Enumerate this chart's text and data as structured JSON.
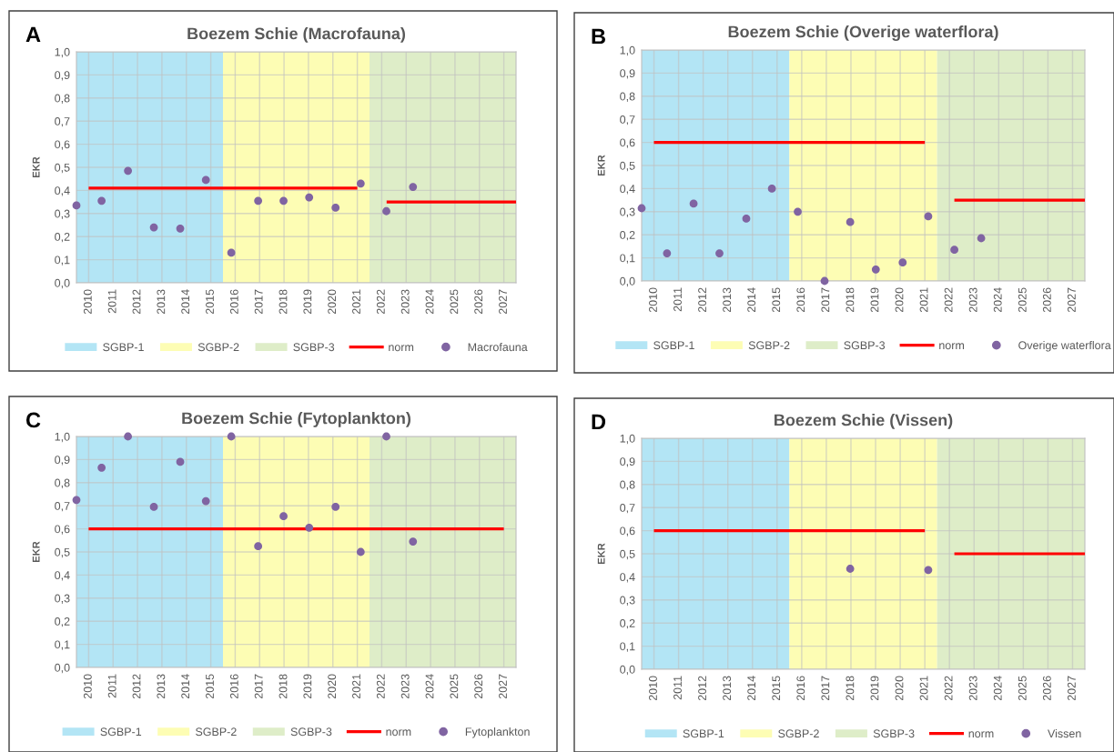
{
  "chart_data": [
    {
      "type": "scatter",
      "title": "Boezem Schie (Macrofauna)",
      "ylabel": "EKR",
      "annotations": [
        "A"
      ],
      "xlim": [
        2009.5,
        2027.5
      ],
      "xticks": [
        2010,
        2011,
        2012,
        2013,
        2014,
        2015,
        2016,
        2017,
        2018,
        2019,
        2020,
        2021,
        2022,
        2023,
        2024,
        2025,
        2026,
        2027
      ],
      "ylim": [
        0,
        1
      ],
      "yticks": [
        {
          "value": 0,
          "label": "0,0"
        },
        {
          "value": 0.1,
          "label": "0,1"
        },
        {
          "value": 0.2,
          "label": "0,2"
        },
        {
          "value": 0.3,
          "label": "0,3"
        },
        {
          "value": 0.4,
          "label": "0,4"
        },
        {
          "value": 0.5,
          "label": "0,5"
        },
        {
          "value": 0.6,
          "label": "0,6"
        },
        {
          "value": 0.7,
          "label": "0,7"
        },
        {
          "value": 0.8,
          "label": "0,8"
        },
        {
          "value": 0.9,
          "label": "0,9"
        },
        {
          "value": 1,
          "label": "1,0"
        }
      ],
      "grid": true,
      "legend": "bottom",
      "bands": [
        {
          "axis": "x",
          "from": 2009.5,
          "to": 2015.5,
          "label": "SGBP-1",
          "color": "#b3e5f5"
        },
        {
          "axis": "x",
          "from": 2015.5,
          "to": 2021.5,
          "label": "SGBP-2",
          "color": "#fdfdb4"
        },
        {
          "axis": "x",
          "from": 2021.5,
          "to": 2027.5,
          "label": "SGBP-3",
          "color": "#deedc8"
        }
      ],
      "series": [
        {
          "name": "norm",
          "type": "line",
          "color": "#ff0000",
          "line_style": "solid",
          "x": [
            2010,
            2021,
            2021.6,
            2022.2,
            2027.5
          ],
          "values": [
            0.41,
            0.41,
            null,
            0.35,
            0.35
          ]
        },
        {
          "name": "Macrofauna",
          "color": "#8064a2",
          "marker": "circle",
          "x": [
            2009.5,
            2010.53,
            2011.61,
            2012.67,
            2013.75,
            2014.8,
            2015.84,
            2016.94,
            2017.98,
            2019.03,
            2020.11,
            2021.14,
            2022.19,
            2023.28
          ],
          "values": [
            0.335,
            0.355,
            0.485,
            0.24,
            0.235,
            0.445,
            0.13,
            0.355,
            0.355,
            0.37,
            0.325,
            0.43,
            0.31,
            0.415
          ]
        }
      ]
    },
    {
      "type": "scatter",
      "title": "Boezem Schie (Overige waterflora)",
      "ylabel": "EKR",
      "annotations": [
        "B"
      ],
      "xlim": [
        2009.5,
        2027.5
      ],
      "xticks": [
        2010,
        2011,
        2012,
        2013,
        2014,
        2015,
        2016,
        2017,
        2018,
        2019,
        2020,
        2021,
        2022,
        2023,
        2024,
        2025,
        2026,
        2027
      ],
      "ylim": [
        0,
        1
      ],
      "yticks": [
        {
          "value": 0,
          "label": "0,0"
        },
        {
          "value": 0.1,
          "label": "0,1"
        },
        {
          "value": 0.2,
          "label": "0,2"
        },
        {
          "value": 0.3,
          "label": "0,3"
        },
        {
          "value": 0.4,
          "label": "0,4"
        },
        {
          "value": 0.5,
          "label": "0,5"
        },
        {
          "value": 0.6,
          "label": "0,6"
        },
        {
          "value": 0.7,
          "label": "0,7"
        },
        {
          "value": 0.8,
          "label": "0,8"
        },
        {
          "value": 0.9,
          "label": "0,9"
        },
        {
          "value": 1,
          "label": "1,0"
        }
      ],
      "grid": true,
      "legend": "bottom",
      "bands": [
        {
          "axis": "x",
          "from": 2009.5,
          "to": 2015.5,
          "label": "SGBP-1",
          "color": "#b3e5f5"
        },
        {
          "axis": "x",
          "from": 2015.5,
          "to": 2021.5,
          "label": "SGBP-2",
          "color": "#fdfdb4"
        },
        {
          "axis": "x",
          "from": 2021.5,
          "to": 2027.5,
          "label": "SGBP-3",
          "color": "#deedc8"
        }
      ],
      "series": [
        {
          "name": "norm",
          "type": "line",
          "color": "#ff0000",
          "line_style": "solid",
          "x": [
            2010,
            2021,
            2021.6,
            2022.2,
            2027.5
          ],
          "values": [
            0.6,
            0.6,
            null,
            0.35,
            0.35
          ]
        },
        {
          "name": "Overige waterflora",
          "color": "#8064a2",
          "marker": "circle",
          "x": [
            2009.5,
            2010.53,
            2011.61,
            2012.66,
            2013.75,
            2014.79,
            2015.84,
            2016.93,
            2017.97,
            2019.01,
            2020.1,
            2021.14,
            2022.2,
            2023.29
          ],
          "values": [
            0.315,
            0.12,
            0.335,
            0.12,
            0.27,
            0.4,
            0.3,
            0.0,
            0.255,
            0.05,
            0.08,
            0.28,
            0.135,
            0.185
          ]
        }
      ]
    },
    {
      "type": "scatter",
      "title": "Boezem Schie (Fytoplankton)",
      "ylabel": "EKR",
      "annotations": [
        "C"
      ],
      "xlim": [
        2009.5,
        2027.5
      ],
      "xticks": [
        2010,
        2011,
        2012,
        2013,
        2014,
        2015,
        2016,
        2017,
        2018,
        2019,
        2020,
        2021,
        2022,
        2023,
        2024,
        2025,
        2026,
        2027
      ],
      "ylim": [
        0,
        1
      ],
      "yticks": [
        {
          "value": 0,
          "label": "0,0"
        },
        {
          "value": 0.1,
          "label": "0,1"
        },
        {
          "value": 0.2,
          "label": "0,2"
        },
        {
          "value": 0.3,
          "label": "0,3"
        },
        {
          "value": 0.4,
          "label": "0,4"
        },
        {
          "value": 0.5,
          "label": "0,5"
        },
        {
          "value": 0.6,
          "label": "0,6"
        },
        {
          "value": 0.7,
          "label": "0,7"
        },
        {
          "value": 0.8,
          "label": "0,8"
        },
        {
          "value": 0.9,
          "label": "0,9"
        },
        {
          "value": 1,
          "label": "1,0"
        }
      ],
      "grid": true,
      "legend": "bottom",
      "bands": [
        {
          "axis": "x",
          "from": 2009.5,
          "to": 2015.5,
          "label": "SGBP-1",
          "color": "#b3e5f5"
        },
        {
          "axis": "x",
          "from": 2015.5,
          "to": 2021.5,
          "label": "SGBP-2",
          "color": "#fdfdb4"
        },
        {
          "axis": "x",
          "from": 2021.5,
          "to": 2027.5,
          "label": "SGBP-3",
          "color": "#deedc8"
        }
      ],
      "series": [
        {
          "name": "norm",
          "type": "line",
          "color": "#ff0000",
          "line_style": "solid",
          "x": [
            2010,
            2027
          ],
          "values": [
            0.6,
            0.6
          ]
        },
        {
          "name": "Fytoplankton",
          "color": "#8064a2",
          "marker": "circle",
          "x": [
            2009.5,
            2010.53,
            2011.61,
            2012.67,
            2013.75,
            2014.8,
            2015.84,
            2016.94,
            2017.98,
            2019.03,
            2020.11,
            2021.14,
            2022.19,
            2023.28
          ],
          "values": [
            0.725,
            0.865,
            1.0,
            0.695,
            0.89,
            0.72,
            1.0,
            0.525,
            0.655,
            0.605,
            0.695,
            0.5,
            1.0,
            0.545
          ]
        }
      ]
    },
    {
      "type": "scatter",
      "title": "Boezem Schie (Vissen)",
      "ylabel": "EKR",
      "annotations": [
        "D"
      ],
      "xlim": [
        2009.5,
        2027.5
      ],
      "xticks": [
        2010,
        2011,
        2012,
        2013,
        2014,
        2015,
        2016,
        2017,
        2018,
        2019,
        2020,
        2021,
        2022,
        2023,
        2024,
        2025,
        2026,
        2027
      ],
      "ylim": [
        0,
        1
      ],
      "yticks": [
        {
          "value": 0,
          "label": "0,0"
        },
        {
          "value": 0.1,
          "label": "0,1"
        },
        {
          "value": 0.2,
          "label": "0,2"
        },
        {
          "value": 0.3,
          "label": "0,3"
        },
        {
          "value": 0.4,
          "label": "0,4"
        },
        {
          "value": 0.5,
          "label": "0,5"
        },
        {
          "value": 0.6,
          "label": "0,6"
        },
        {
          "value": 0.7,
          "label": "0,7"
        },
        {
          "value": 0.8,
          "label": "0,8"
        },
        {
          "value": 0.9,
          "label": "0,9"
        },
        {
          "value": 1,
          "label": "1,0"
        }
      ],
      "grid": true,
      "legend": "bottom",
      "bands": [
        {
          "axis": "x",
          "from": 2009.5,
          "to": 2015.5,
          "label": "SGBP-1",
          "color": "#b3e5f5"
        },
        {
          "axis": "x",
          "from": 2015.5,
          "to": 2021.5,
          "label": "SGBP-2",
          "color": "#fdfdb4"
        },
        {
          "axis": "x",
          "from": 2021.5,
          "to": 2027.5,
          "label": "SGBP-3",
          "color": "#deedc8"
        }
      ],
      "series": [
        {
          "name": "norm",
          "type": "line",
          "color": "#ff0000",
          "line_style": "solid",
          "x": [
            2010,
            2021,
            2021.6,
            2022.2,
            2027.5
          ],
          "values": [
            0.6,
            0.6,
            null,
            0.5,
            0.5
          ]
        },
        {
          "name": "Vissen",
          "color": "#8064a2",
          "marker": "circle",
          "x": [
            2017.97,
            2021.14
          ],
          "values": [
            0.435,
            0.43
          ]
        }
      ]
    }
  ]
}
